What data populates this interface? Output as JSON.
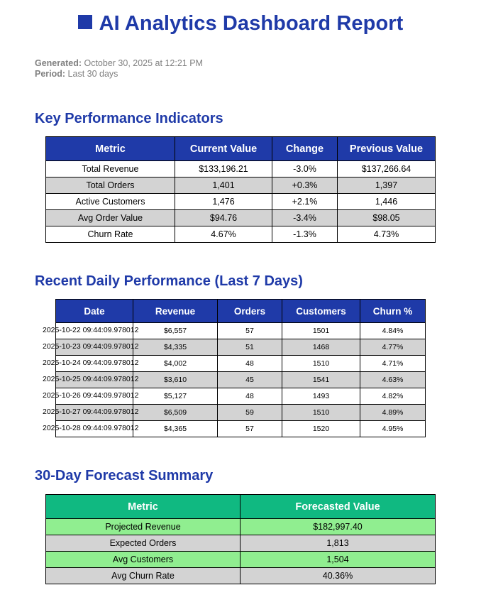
{
  "title": "AI Analytics Dashboard Report",
  "meta": {
    "generated_label": "Generated:",
    "generated_value": "October 30, 2025 at 12:21 PM",
    "period_label": "Period:",
    "period_value": "Last 30 days"
  },
  "kpi": {
    "heading": "Key Performance Indicators",
    "columns": [
      "Metric",
      "Current Value",
      "Change",
      "Previous Value"
    ],
    "rows": [
      [
        "Total Revenue",
        "$133,196.21",
        "-3.0%",
        "$137,266.64"
      ],
      [
        "Total Orders",
        "1,401",
        "+0.3%",
        "1,397"
      ],
      [
        "Active Customers",
        "1,476",
        "+2.1%",
        "1,446"
      ],
      [
        "Avg Order Value",
        "$94.76",
        "-3.4%",
        "$98.05"
      ],
      [
        "Churn Rate",
        "4.67%",
        "-1.3%",
        "4.73%"
      ]
    ]
  },
  "daily": {
    "heading": "Recent Daily Performance (Last 7 Days)",
    "columns": [
      "Date",
      "Revenue",
      "Orders",
      "Customers",
      "Churn %"
    ],
    "rows": [
      [
        "2025-10-22 09:44:09.978012",
        "$6,557",
        "57",
        "1501",
        "4.84%"
      ],
      [
        "2025-10-23 09:44:09.978012",
        "$4,335",
        "51",
        "1468",
        "4.77%"
      ],
      [
        "2025-10-24 09:44:09.978012",
        "$4,002",
        "48",
        "1510",
        "4.71%"
      ],
      [
        "2025-10-25 09:44:09.978012",
        "$3,610",
        "45",
        "1541",
        "4.63%"
      ],
      [
        "2025-10-26 09:44:09.978012",
        "$5,127",
        "48",
        "1493",
        "4.82%"
      ],
      [
        "2025-10-27 09:44:09.978012",
        "$6,509",
        "59",
        "1510",
        "4.89%"
      ],
      [
        "2025-10-28 09:44:09.978012",
        "$4,365",
        "57",
        "1520",
        "4.95%"
      ]
    ]
  },
  "forecast": {
    "heading": "30-Day Forecast Summary",
    "columns": [
      "Metric",
      "Forecasted Value"
    ],
    "rows": [
      [
        "Projected Revenue",
        "$182,997.40"
      ],
      [
        "Expected Orders",
        "1,813"
      ],
      [
        "Avg Customers",
        "1,504"
      ],
      [
        "Avg Churn Rate",
        "40.36%"
      ]
    ]
  },
  "colors": {
    "heading_blue": "#1f3aa8",
    "forecast_header": "#10b981",
    "forecast_row": "#90ee90",
    "alt_row": "#d3d3d3",
    "meta_gray": "#808080"
  }
}
